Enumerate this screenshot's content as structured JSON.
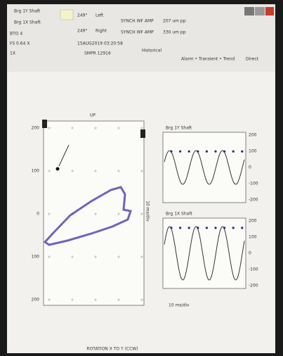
{
  "header": {
    "probes": [
      "Brg 1Y Shaft",
      "Brg 1X Shaft"
    ],
    "bto": "BTO 4",
    "fs": "FS 0.64 X",
    "mode": "1X",
    "angles": [
      {
        "value": "249°",
        "side": "Left"
      },
      {
        "value": "249°",
        "side": "Right"
      }
    ],
    "amps": [
      {
        "label": "SYNCH WF AMP",
        "value": "207 um pp"
      },
      {
        "label": "SYNCH WF AMP",
        "value": "330 um pp"
      }
    ],
    "timestamp": "15AUG2019 03:20:58",
    "smpr": "SMPR 12916",
    "historical": "Historical",
    "filters": "Alarm • Transient • Trend",
    "direct": "Direct"
  },
  "orbit": {
    "title": "UP",
    "yticks": [
      "200",
      "100",
      "0",
      "100",
      "200"
    ],
    "rotation": "ROTATION X TO Y (CCW)"
  },
  "waveforms": [
    {
      "title": "Brg 1Y Shaft",
      "yticks": [
        "200",
        "100",
        "0",
        "-100",
        "-200"
      ]
    },
    {
      "title": "Brg 1X Shaft",
      "yticks": [
        "200",
        "100",
        "0",
        "-100",
        "-200"
      ]
    }
  ],
  "xaxis": "10 ms/div"
}
